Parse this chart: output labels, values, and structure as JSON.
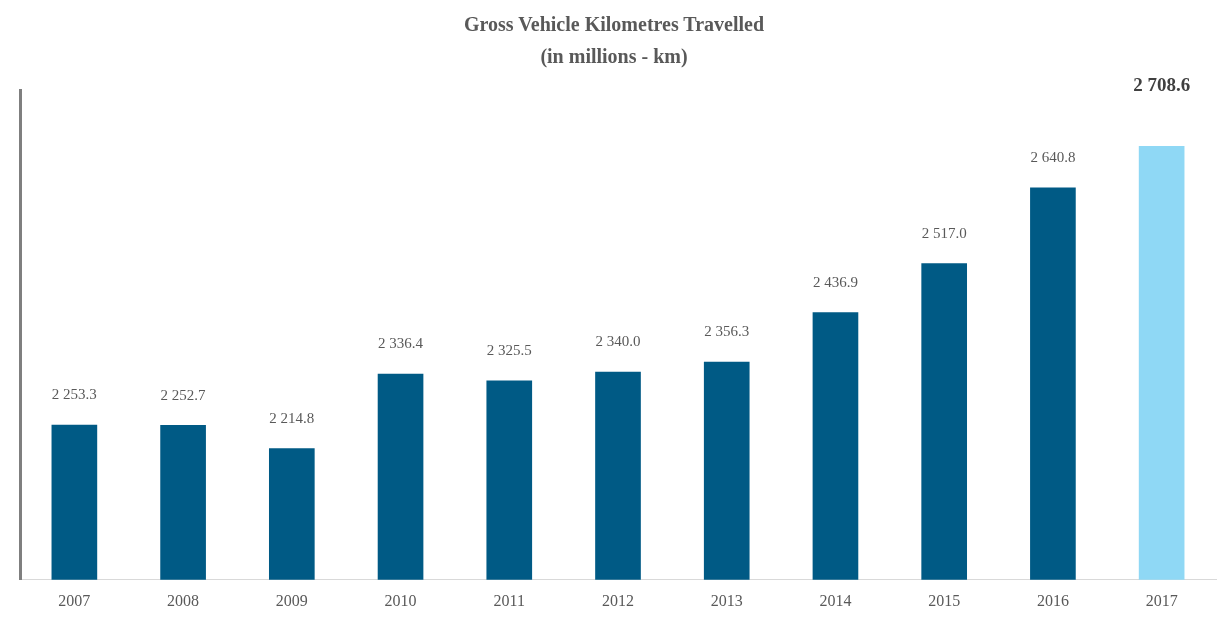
{
  "chart_data": {
    "type": "bar",
    "title": "Gross Vehicle Kilometres Travelled",
    "subtitle": "(in millions - km)",
    "categories": [
      "2007",
      "2008",
      "2009",
      "2010",
      "2011",
      "2012",
      "2013",
      "2014",
      "2015",
      "2016",
      "2017"
    ],
    "values": [
      2253.3,
      2252.7,
      2214.8,
      2336.4,
      2325.5,
      2340.0,
      2356.3,
      2436.9,
      2517.0,
      2640.8,
      2708.6
    ],
    "value_labels": [
      "2 253.3",
      "2 252.7",
      "2 214.8",
      "2 336.4",
      "2 325.5",
      "2 340.0",
      "2 356.3",
      "2 436.9",
      "2 517.0",
      "2 640.8",
      "2 708.6"
    ],
    "colors": [
      "#005a85",
      "#005a85",
      "#005a85",
      "#005a85",
      "#005a85",
      "#005a85",
      "#005a85",
      "#005a85",
      "#005a85",
      "#005a85",
      "#8fd8f5"
    ],
    "ylim": [
      2000,
      2800
    ],
    "tick_labels": "x",
    "grid": false,
    "legend": false
  }
}
